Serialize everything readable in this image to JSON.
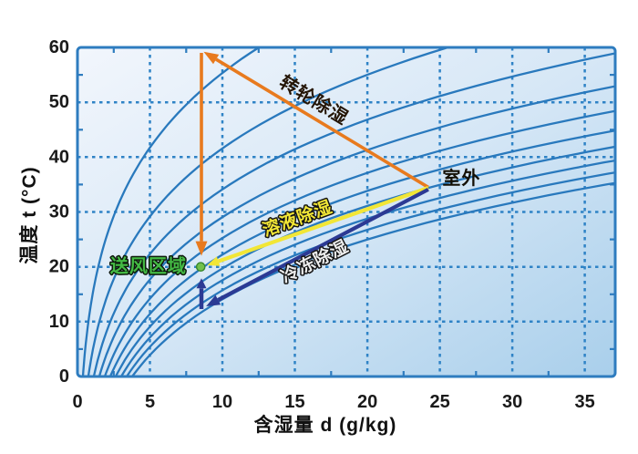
{
  "chart_data": {
    "type": "line",
    "title": "",
    "xlabel": "含湿量 d (g/kg)",
    "ylabel": "温度 t (°C)",
    "xlim": [
      0,
      37.1
    ],
    "ylim": [
      0,
      60
    ],
    "x_ticks": [
      0,
      5,
      10,
      15,
      20,
      25,
      30,
      35
    ],
    "y_ticks": [
      0,
      10,
      20,
      30,
      40,
      50,
      60
    ],
    "x_minor_ticks": [
      2.5,
      7.5,
      12.5,
      17.5,
      22.5,
      27.5,
      32.5
    ],
    "y_minor_ticks": [
      5,
      15,
      25,
      35,
      45,
      55
    ],
    "grid": "dashed major gridlines, solid border, legend none",
    "curves_meaning": "constant relative humidity lines (psychrometric chart, barometric pressure 101.325 kPa)",
    "rh_curves_percent": [
      10,
      20,
      30,
      40,
      50,
      60,
      70,
      80,
      90,
      100
    ],
    "points": [
      {
        "name": "outdoor",
        "label": "室外",
        "d": 24.2,
        "t": 34.5
      },
      {
        "name": "supply-zone",
        "label": "送风区域",
        "d": 8.5,
        "t": 20.0
      }
    ],
    "processes": [
      {
        "name": "rotary-desiccant-drying",
        "label": "转轮除湿",
        "color": "orange",
        "width": 3.6,
        "from": {
          "d": 24.2,
          "t": 34.5
        },
        "to": {
          "d": 8.7,
          "t": 59.2
        },
        "head": {
          "l": 16,
          "w": 12
        }
      },
      {
        "name": "rotary-sensible-cooling",
        "label": "",
        "color": "orange",
        "width": 3.6,
        "from": {
          "d": 8.55,
          "t": 59.0
        },
        "to": {
          "d": 8.55,
          "t": 22.0
        },
        "head": {
          "l": 16,
          "w": 13
        }
      },
      {
        "name": "liquid-desiccant",
        "label": "溶液除湿",
        "color": "yellow",
        "width": 4.2,
        "from": {
          "d": 24.2,
          "t": 34.4
        },
        "to": {
          "d": 8.95,
          "t": 20.3
        },
        "head": {
          "l": 13,
          "w": 11
        }
      },
      {
        "name": "refrigeration-dehumidify",
        "label": "冷冻除湿",
        "color": "navy",
        "width": 4.2,
        "from": {
          "d": 24.2,
          "t": 34.1
        },
        "to": {
          "d": 8.87,
          "t": 12.8
        },
        "head": {
          "l": 15,
          "w": 12
        }
      },
      {
        "name": "refrigeration-reheat",
        "label": "",
        "color": "navy",
        "width": 4.5,
        "from": {
          "d": 8.55,
          "t": 12.3
        },
        "to": {
          "d": 8.55,
          "t": 17.9
        },
        "head": {
          "l": 11,
          "w": 11
        }
      }
    ],
    "annotations": [
      {
        "name": "rotary-label",
        "text": "转轮除湿",
        "d": 16.3,
        "t": 50.3,
        "rotation": 31,
        "fill": "#241505",
        "outline": "none",
        "font_size": 20
      },
      {
        "name": "liquid-label",
        "text": "溶液除湿",
        "d": 15.2,
        "t": 28.7,
        "rotation": -20,
        "fill": "#f2e636",
        "outline": "#141414",
        "font_size": 19
      },
      {
        "name": "refrigeration-label",
        "text": "冷冻除湿",
        "d": 16.4,
        "t": 20.9,
        "rotation": -27,
        "fill": "#ededed",
        "outline": "#141414",
        "font_size": 19
      },
      {
        "name": "supply-zone-label",
        "text": "送风区域",
        "d": 4.9,
        "t": 20.0,
        "rotation": 0,
        "fill": "#44bb44",
        "outline": "#0d1a0d",
        "font_size": 20
      },
      {
        "name": "outdoor-label",
        "text": "室外",
        "d": 26.5,
        "t": 36.1,
        "rotation": 0,
        "fill": "#141005",
        "outline": "none",
        "font_size": 20
      }
    ],
    "colors": {
      "border": "#2e7cbf",
      "grid": "#2f83c6",
      "curve": "#2979bd",
      "orange": "#e87a1e",
      "yellow": "#f2e636",
      "navy": "#2c3a94",
      "dot_fill": "#72c14b",
      "dot_edge": "#38872f",
      "tick_text": "#1a1a1a",
      "bg_gradient": [
        "#f2f6fc",
        "#d6e7f6",
        "#a9cfeb"
      ]
    },
    "barometric_pressure_kpa": 101.325
  }
}
